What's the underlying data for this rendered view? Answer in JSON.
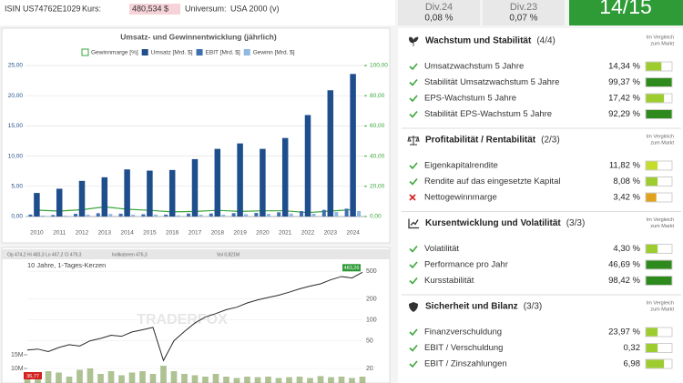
{
  "header": {
    "isin": "ISIN US74762E1029",
    "price_label": "Kurs:",
    "price": "480,534 $",
    "universe_label": "Universum:",
    "universe": "USA 2000 (v)"
  },
  "dividends": [
    {
      "label": "Div.24",
      "value": "0,08 %"
    },
    {
      "label": "Div.23",
      "value": "0,07 %"
    }
  ],
  "score": "14/15",
  "compare_note": [
    "Im Vergleich",
    "zum Markt"
  ],
  "chart_data": [
    {
      "type": "bar",
      "title": "Umsatz- und Gewinnentwicklung (jährlich)",
      "categories": [
        "2010",
        "2011",
        "2012",
        "2013",
        "2014",
        "2015",
        "2016",
        "2017",
        "2018",
        "2019",
        "2020",
        "2021",
        "2022",
        "2023",
        "2024"
      ],
      "series": [
        {
          "name": "Gewinnmarge [%]",
          "color": "#3aa63a",
          "kind": "line",
          "axis": "y2",
          "values": [
            4.2,
            3.6,
            4.5,
            6.4,
            4.8,
            4.1,
            3.1,
            3.4,
            4.1,
            3.4,
            3.8,
            3.8,
            2.6,
            3.6,
            4.6
          ]
        },
        {
          "name": "Umsatz [Mrd. $]",
          "color": "#1f4e8c",
          "kind": "bar",
          "values": [
            3.9,
            4.6,
            5.9,
            6.5,
            7.8,
            7.6,
            7.7,
            9.5,
            11.2,
            12.1,
            11.2,
            13.0,
            16.8,
            20.9,
            23.6
          ]
        },
        {
          "name": "EBIT [Mrd. $]",
          "color": "#3f6fae",
          "kind": "bar",
          "values": [
            0.33,
            0.24,
            0.45,
            0.55,
            0.47,
            0.38,
            0.32,
            0.5,
            0.5,
            0.55,
            0.6,
            0.7,
            0.9,
            1.1,
            1.3
          ]
        },
        {
          "name": "Gewinn [Mrd. $]",
          "color": "#8fb8e2",
          "kind": "bar",
          "values": [
            0.16,
            0.13,
            0.31,
            0.42,
            0.31,
            0.32,
            0.2,
            0.3,
            0.29,
            0.4,
            0.45,
            0.49,
            0.45,
            0.74,
            0.9
          ]
        }
      ],
      "ylim": [
        0,
        25
      ],
      "yticks": [
        {
          "value": 0,
          "label": "0,00"
        },
        {
          "value": 5,
          "label": "5,00"
        },
        {
          "value": 10,
          "label": "10,00"
        },
        {
          "value": 15,
          "label": "15,00"
        },
        {
          "value": 20,
          "label": "20,00"
        },
        {
          "value": 25,
          "label": "25,00"
        }
      ],
      "y2lim": [
        0,
        100
      ],
      "y2ticks": [
        {
          "value": 0,
          "label": "0,00"
        },
        {
          "value": 20,
          "label": "20,00"
        },
        {
          "value": 40,
          "label": "40,00"
        },
        {
          "value": 60,
          "label": "60,00"
        },
        {
          "value": 80,
          "label": "80,00"
        },
        {
          "value": 100,
          "label": "100,00"
        }
      ],
      "grid": true
    },
    {
      "type": "line",
      "title": "10 Jahre, 1-Tages-Kerzen",
      "info": [
        "Op 474,2 Hi 483,3 Lo 467,2 Cl 479,3",
        "Indikatoren 476,3",
        "Vol 0,821M"
      ],
      "watermark": "TRADERFOX",
      "log": true,
      "grid": true,
      "series": [
        {
          "name": "Kurs",
          "color": "#2a2a2a",
          "values": [
            36.77,
            38,
            35,
            40,
            44,
            42,
            50,
            54,
            60,
            58,
            67,
            72,
            78,
            26,
            50,
            68,
            90,
            110,
            123,
            140,
            152,
            175,
            194,
            210,
            226,
            250,
            279,
            306,
            330,
            378,
            420,
            400,
            483.26
          ],
          "value_labels": [
            "36,77",
            null,
            null,
            null,
            null,
            null,
            null,
            null,
            null,
            null,
            null,
            null,
            null,
            null,
            null,
            null,
            null,
            null,
            null,
            null,
            null,
            null,
            null,
            null,
            null,
            null,
            null,
            null,
            null,
            null,
            null,
            null,
            "483,26"
          ]
        },
        {
          "name": "Vol",
          "color": "#6b8f3a",
          "axis": "y2",
          "values": [
            7500000,
            8000000,
            9000000,
            8500000,
            7000000,
            9500000,
            10000000,
            8000000,
            9000000,
            7500000,
            8500000,
            9000000,
            8000000,
            11000000,
            9000000,
            8000000,
            7500000,
            7000000,
            8000000,
            7000000,
            6500000,
            7000000,
            6800000,
            7000000,
            6500000,
            6800000,
            7000000,
            6500000,
            7200000,
            6800000,
            7000000,
            6500000,
            7000000
          ]
        }
      ],
      "ylim": [
        20,
        700
      ],
      "yticks": [
        20,
        50,
        100,
        200,
        500
      ],
      "y2lim": [
        0,
        20000000
      ],
      "y2ticks": [
        {
          "value": 10000000,
          "label": "10M"
        },
        {
          "value": 15000000,
          "label": "15M"
        }
      ]
    }
  ],
  "sections": [
    {
      "title": "Wachstum und Stabilität",
      "count": "(4/4)",
      "icon": "growth",
      "rows": [
        {
          "label": "Umsatzwachstum 5 Jahre",
          "value": "14,34 %",
          "rating": 60,
          "color": "#9ccc2e",
          "pass": true
        },
        {
          "label": "Stabilität Umsatzwachstum 5 Jahre",
          "value": "99,37 %",
          "rating": 100,
          "color": "#2f8a1e",
          "pass": true
        },
        {
          "label": "EPS-Wachstum 5 Jahre",
          "value": "17,42 %",
          "rating": 70,
          "color": "#9ccc2e",
          "pass": true
        },
        {
          "label": "Stabilität EPS-Wachstum 5 Jahre",
          "value": "92,29 %",
          "rating": 100,
          "color": "#2f8a1e",
          "pass": true
        }
      ]
    },
    {
      "title": "Profitabilität / Rentabilität",
      "count": "(2/3)",
      "icon": "scale",
      "rows": [
        {
          "label": "Eigenkapitalrendite",
          "value": "11,82 %",
          "rating": 45,
          "color": "#c6dc2a",
          "pass": true
        },
        {
          "label": "Rendite auf das eingesetzte Kapital",
          "value": "8,08 %",
          "rating": 45,
          "color": "#9ccc2e",
          "pass": true
        },
        {
          "label": "Nettogewinnmarge",
          "value": "3,42 %",
          "rating": 40,
          "color": "#e0a21a",
          "pass": false
        }
      ]
    },
    {
      "title": "Kursentwicklung und Volatilität",
      "count": "(3/3)",
      "icon": "chart",
      "rows": [
        {
          "label": "Volatilität",
          "value": "4,30 %",
          "rating": 45,
          "color": "#9ccc2e",
          "pass": true
        },
        {
          "label": "Performance pro Jahr",
          "value": "46,69 %",
          "rating": 100,
          "color": "#2f8a1e",
          "pass": true
        },
        {
          "label": "Kursstabilität",
          "value": "98,42 %",
          "rating": 100,
          "color": "#2f8a1e",
          "pass": true
        }
      ]
    },
    {
      "title": "Sicherheit und Bilanz",
      "count": "(3/3)",
      "icon": "shield",
      "rows": [
        {
          "label": "Finanzverschuldung",
          "value": "23,97 %",
          "rating": 45,
          "color": "#9ccc2e",
          "pass": true
        },
        {
          "label": "EBIT / Verschuldung",
          "value": "0,32",
          "rating": 45,
          "color": "#9ccc2e",
          "pass": true
        },
        {
          "label": "EBIT / Zinszahlungen",
          "value": "6,98",
          "rating": 70,
          "color": "#9ccc2e",
          "pass": true
        }
      ]
    }
  ]
}
